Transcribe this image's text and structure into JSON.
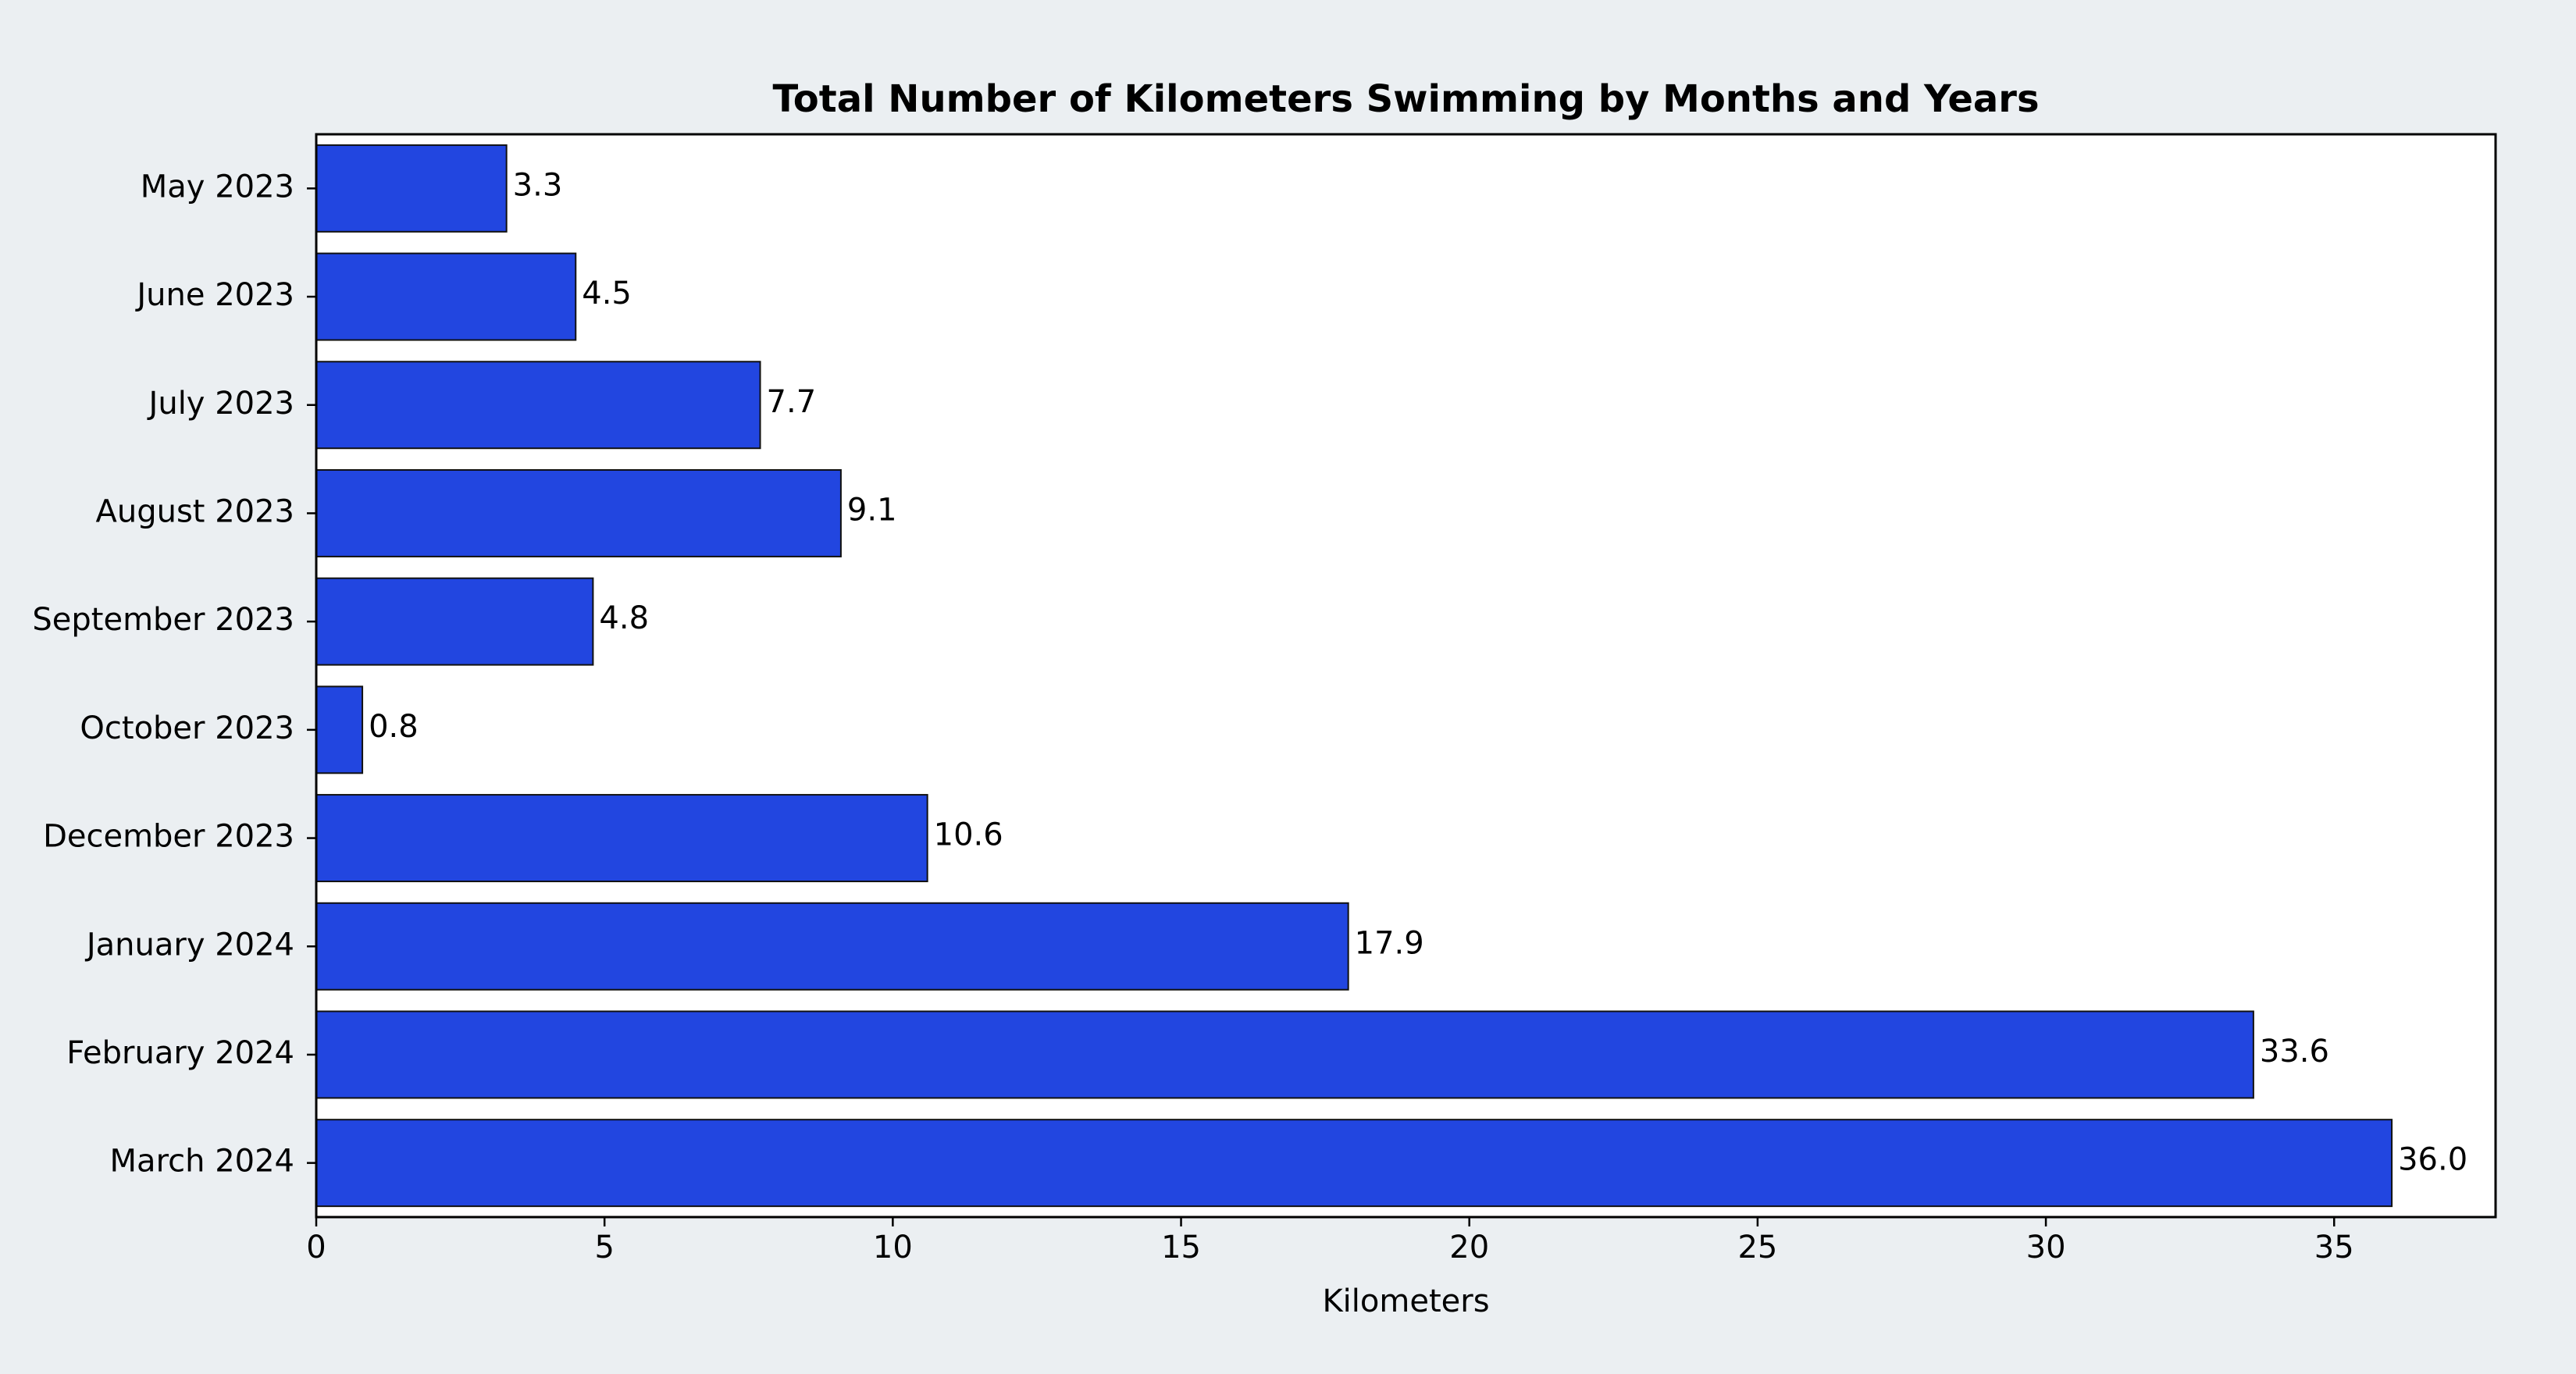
{
  "colors": {
    "page_background": "#ebeff2",
    "plot_background": "#ffffff",
    "bar_fill": "#2246e0",
    "bar_edge": "#111111",
    "axis": "#000000"
  },
  "chart_data": {
    "type": "bar",
    "orientation": "horizontal",
    "title": "Total Number of Kilometers Swimming by Months and Years",
    "xlabel": "Kilometers",
    "ylabel": "",
    "categories": [
      "May 2023",
      "June 2023",
      "July 2023",
      "August 2023",
      "September 2023",
      "October 2023",
      "December 2023",
      "January 2024",
      "February 2024",
      "March 2024"
    ],
    "values": [
      3.3,
      4.5,
      7.7,
      9.1,
      4.8,
      0.8,
      10.6,
      17.9,
      33.6,
      36.0
    ],
    "data_labels": [
      "3.3",
      "4.5",
      "7.7",
      "9.1",
      "4.8",
      "0.8",
      "10.6",
      "17.9",
      "33.6",
      "36.0"
    ],
    "xlim": [
      0,
      37.8
    ],
    "xticks": [
      0,
      5,
      10,
      15,
      20,
      25,
      30,
      35
    ],
    "xtick_labels": [
      "0",
      "5",
      "10",
      "15",
      "20",
      "25",
      "30",
      "35"
    ],
    "grid": false,
    "legend": "none"
  }
}
